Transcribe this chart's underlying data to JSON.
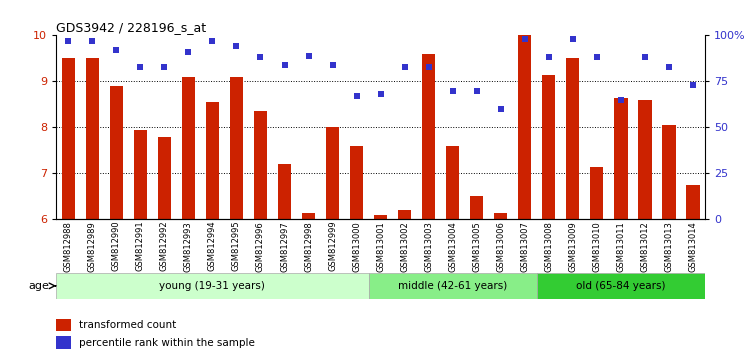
{
  "title": "GDS3942 / 228196_s_at",
  "samples": [
    "GSM812988",
    "GSM812989",
    "GSM812990",
    "GSM812991",
    "GSM812992",
    "GSM812993",
    "GSM812994",
    "GSM812995",
    "GSM812996",
    "GSM812997",
    "GSM812998",
    "GSM812999",
    "GSM813000",
    "GSM813001",
    "GSM813002",
    "GSM813003",
    "GSM813004",
    "GSM813005",
    "GSM813006",
    "GSM813007",
    "GSM813008",
    "GSM813009",
    "GSM813010",
    "GSM813011",
    "GSM813012",
    "GSM813013",
    "GSM813014"
  ],
  "bar_values": [
    9.5,
    9.5,
    8.9,
    7.95,
    7.8,
    9.1,
    8.55,
    9.1,
    8.35,
    7.2,
    6.15,
    8.0,
    7.6,
    6.1,
    6.2,
    9.6,
    7.6,
    6.5,
    6.15,
    10.0,
    9.15,
    9.5,
    7.15,
    8.65,
    8.6,
    8.05,
    6.75
  ],
  "percentile_values": [
    97,
    97,
    92,
    83,
    83,
    91,
    97,
    94,
    88,
    84,
    89,
    84,
    67,
    68,
    83,
    83,
    70,
    70,
    60,
    98,
    88,
    98,
    88,
    65,
    88,
    83,
    73
  ],
  "ylim_left": [
    6,
    10
  ],
  "ylim_right": [
    0,
    100
  ],
  "yticks_left": [
    6,
    7,
    8,
    9,
    10
  ],
  "yticks_right": [
    0,
    25,
    50,
    75,
    100
  ],
  "ytick_labels_right": [
    "0",
    "25",
    "50",
    "75",
    "100%"
  ],
  "bar_color": "#cc2200",
  "dot_color": "#3333cc",
  "groups": [
    {
      "label": "young (19-31 years)",
      "start": 0,
      "end": 13,
      "color": "#ccffcc"
    },
    {
      "label": "middle (42-61 years)",
      "start": 13,
      "end": 20,
      "color": "#88ee88"
    },
    {
      "label": "old (65-84 years)",
      "start": 20,
      "end": 27,
      "color": "#33cc33"
    }
  ],
  "xlabel_age": "age",
  "legend_bar_label": "transformed count",
  "legend_dot_label": "percentile rank within the sample",
  "background_color": "#ffffff"
}
